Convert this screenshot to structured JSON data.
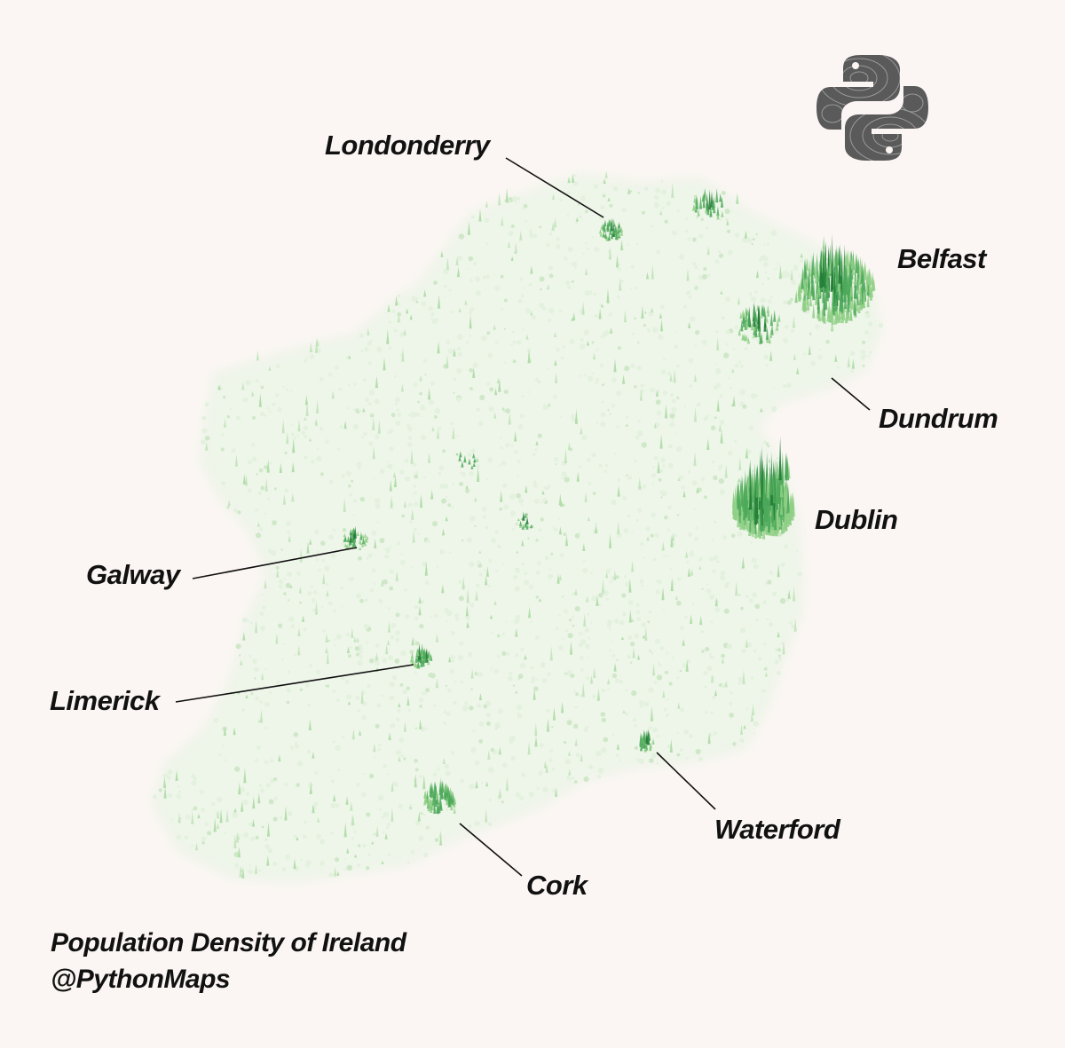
{
  "map": {
    "title": "Population Density of Ireland",
    "credit": "@PythonMaps",
    "logo_icon": "python-logo-icon",
    "colors": {
      "background": "#fbf6f3",
      "low_density": "#e8f3e3",
      "mid_density": "#8fcf86",
      "high_density": "#1e7a34",
      "leader_line": "#111111",
      "logo": "#5b5b5b"
    },
    "cities": [
      {
        "id": "londonderry",
        "name": "Londonderry"
      },
      {
        "id": "belfast",
        "name": "Belfast"
      },
      {
        "id": "dundrum",
        "name": "Dundrum"
      },
      {
        "id": "dublin",
        "name": "Dublin"
      },
      {
        "id": "galway",
        "name": "Galway"
      },
      {
        "id": "limerick",
        "name": "Limerick"
      },
      {
        "id": "waterford",
        "name": "Waterford"
      },
      {
        "id": "cork",
        "name": "Cork"
      }
    ]
  }
}
